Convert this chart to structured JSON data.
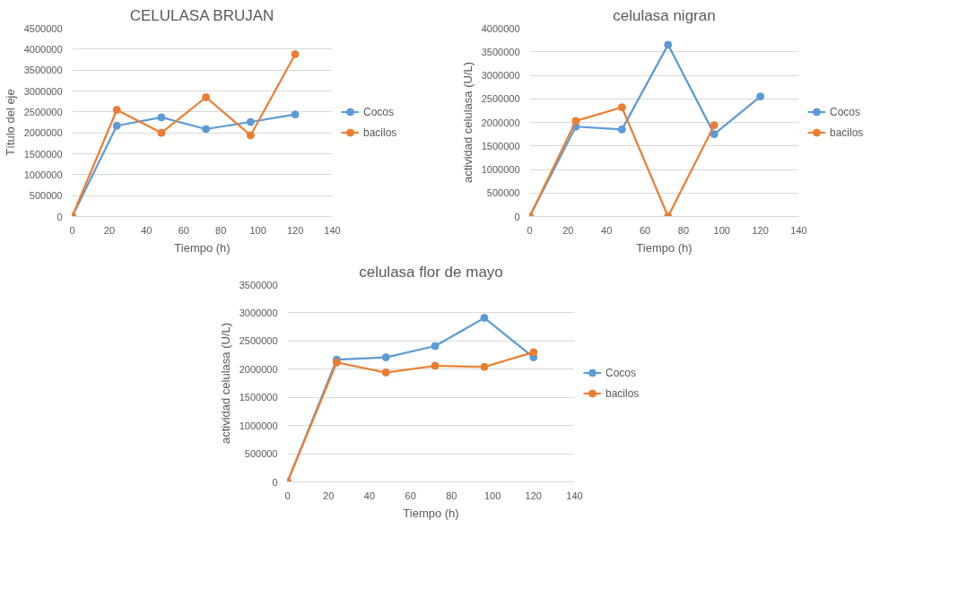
{
  "chart_data": [
    {
      "type": "line",
      "title": "CELULASA BRUJAN",
      "xlabel": "Tiempo (h)",
      "ylabel": "Título del eje",
      "x": [
        0,
        24,
        48,
        72,
        96,
        120
      ],
      "xlim": [
        0,
        140
      ],
      "xticks": [
        0,
        20,
        40,
        60,
        80,
        100,
        120,
        140
      ],
      "ylim": [
        0,
        4500000
      ],
      "yticks": [
        0,
        500000,
        1000000,
        1500000,
        2000000,
        2500000,
        3000000,
        3500000,
        4000000,
        4500000
      ],
      "grid": "y",
      "legend": "right",
      "marker": "circle",
      "series": [
        {
          "name": "Cocos",
          "color": "#5b9bd5",
          "values": [
            0,
            2170000,
            2370000,
            2090000,
            2260000,
            2440000
          ]
        },
        {
          "name": "bacilos",
          "color": "#ed7d31",
          "values": [
            0,
            2550000,
            2000000,
            2850000,
            1940000,
            3880000
          ]
        }
      ]
    },
    {
      "type": "line",
      "title": "celulasa nigran",
      "xlabel": "Tiempo (h)",
      "ylabel": "actividad celulasa (U/L)",
      "x": [
        0,
        24,
        48,
        72,
        96,
        120
      ],
      "xlim": [
        0,
        140
      ],
      "xticks": [
        0,
        20,
        40,
        60,
        80,
        100,
        120,
        140
      ],
      "ylim": [
        0,
        4000000
      ],
      "yticks": [
        0,
        500000,
        1000000,
        1500000,
        2000000,
        2500000,
        3000000,
        3500000,
        4000000
      ],
      "grid": "y",
      "legend": "right",
      "marker": "circle",
      "series": [
        {
          "name": "Cocos",
          "color": "#5b9bd5",
          "values": [
            0,
            1910000,
            1850000,
            3650000,
            1750000,
            2550000
          ]
        },
        {
          "name": "bacilos",
          "color": "#ed7d31",
          "values": [
            0,
            2030000,
            2320000,
            0,
            1940000,
            null
          ]
        }
      ]
    },
    {
      "type": "line",
      "title": "celulasa flor de mayo",
      "xlabel": "Tiempo (h)",
      "ylabel": "actividad celulasa (U/L)",
      "x": [
        0,
        24,
        48,
        72,
        96,
        120
      ],
      "xlim": [
        0,
        140
      ],
      "xticks": [
        0,
        20,
        40,
        60,
        80,
        100,
        120,
        140
      ],
      "ylim": [
        0,
        3500000
      ],
      "yticks": [
        0,
        500000,
        1000000,
        1500000,
        2000000,
        2500000,
        3000000,
        3500000
      ],
      "grid": "y",
      "legend": "right",
      "marker": "circle",
      "series": [
        {
          "name": "Cocos",
          "color": "#5b9bd5",
          "values": [
            0,
            2170000,
            2210000,
            2410000,
            2910000,
            2210000
          ]
        },
        {
          "name": "bacilos",
          "color": "#ed7d31",
          "values": [
            0,
            2120000,
            1940000,
            2060000,
            2040000,
            2300000
          ]
        }
      ]
    }
  ]
}
